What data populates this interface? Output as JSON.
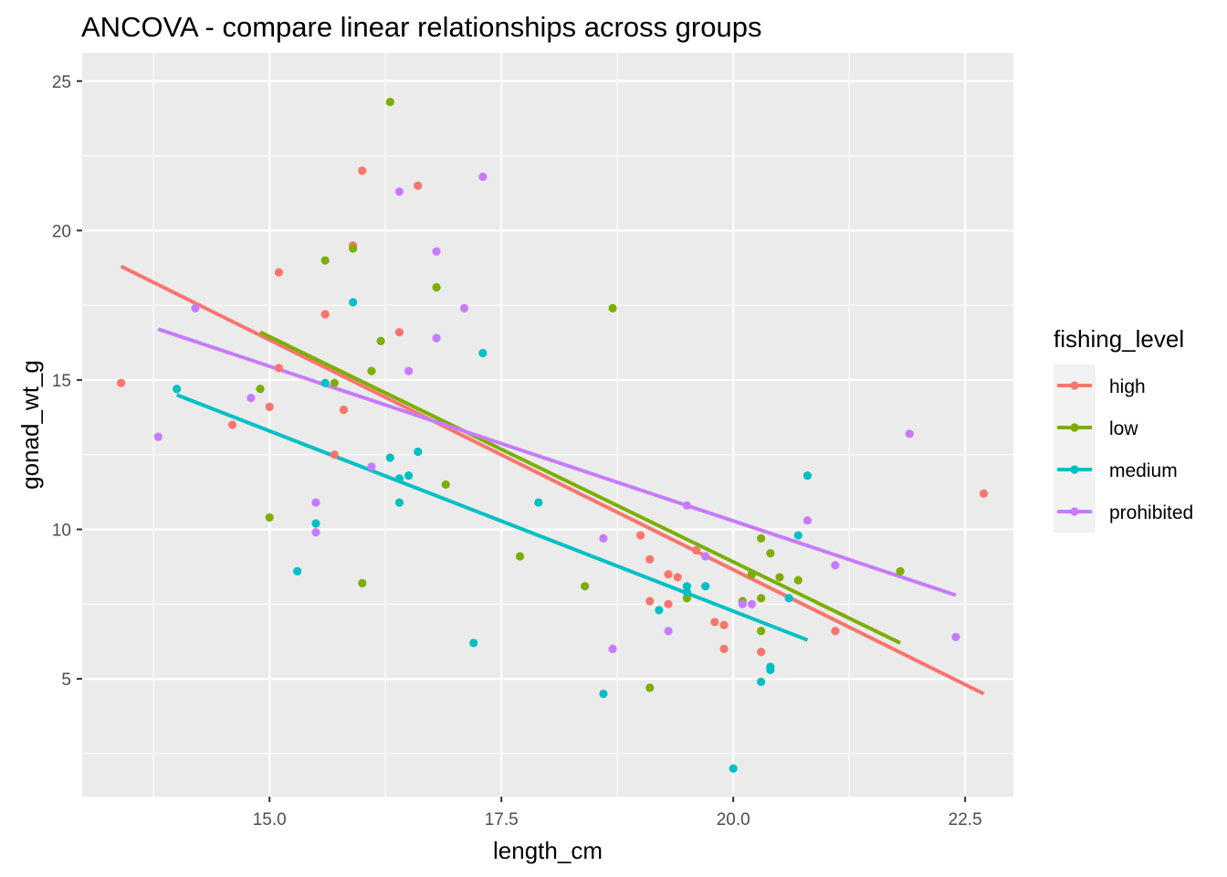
{
  "chart_data": {
    "type": "scatter",
    "title": "ANCOVA - compare linear relationships across groups",
    "xlabel": "length_cm",
    "ylabel": "gonad_wt_g",
    "xlim": [
      12.98,
      23.02
    ],
    "ylim": [
      1.06,
      25.94
    ],
    "x_ticks": [
      15.0,
      17.5,
      20.0,
      22.5
    ],
    "x_tick_labels": [
      "15.0",
      "17.5",
      "20.0",
      "22.5"
    ],
    "y_ticks": [
      5,
      10,
      15,
      20,
      25
    ],
    "y_tick_labels": [
      "5",
      "10",
      "15",
      "20",
      "25"
    ],
    "background": "#ebebeb",
    "grid": true,
    "legend": {
      "title": "fishing_level",
      "position": "right",
      "entries": [
        "high",
        "low",
        "medium",
        "prohibited"
      ]
    },
    "series": [
      {
        "name": "high",
        "color": "#f8766d",
        "points": [
          [
            13.4,
            14.9
          ],
          [
            14.6,
            13.5
          ],
          [
            15.0,
            14.1
          ],
          [
            15.1,
            18.6
          ],
          [
            15.1,
            15.4
          ],
          [
            15.6,
            17.2
          ],
          [
            15.7,
            12.5
          ],
          [
            15.8,
            14.0
          ],
          [
            15.9,
            19.5
          ],
          [
            16.0,
            22.0
          ],
          [
            16.4,
            16.6
          ],
          [
            16.6,
            21.5
          ],
          [
            19.0,
            9.8
          ],
          [
            19.1,
            9.0
          ],
          [
            19.1,
            7.6
          ],
          [
            19.3,
            8.5
          ],
          [
            19.3,
            7.5
          ],
          [
            19.4,
            8.4
          ],
          [
            19.6,
            9.3
          ],
          [
            19.8,
            6.9
          ],
          [
            19.9,
            6.8
          ],
          [
            19.9,
            6.0
          ],
          [
            20.3,
            5.9
          ],
          [
            21.1,
            6.6
          ],
          [
            22.7,
            11.2
          ]
        ],
        "fit": [
          [
            13.4,
            18.8
          ],
          [
            22.7,
            4.5
          ]
        ]
      },
      {
        "name": "low",
        "color": "#7cae00",
        "points": [
          [
            14.9,
            14.7
          ],
          [
            15.0,
            10.4
          ],
          [
            15.6,
            19.0
          ],
          [
            15.7,
            14.9
          ],
          [
            15.9,
            19.4
          ],
          [
            16.0,
            8.2
          ],
          [
            16.1,
            15.3
          ],
          [
            16.2,
            16.3
          ],
          [
            16.3,
            24.3
          ],
          [
            16.8,
            18.1
          ],
          [
            16.9,
            11.5
          ],
          [
            17.7,
            9.1
          ],
          [
            18.4,
            8.1
          ],
          [
            18.7,
            17.4
          ],
          [
            19.1,
            4.7
          ],
          [
            19.5,
            7.7
          ],
          [
            20.1,
            7.6
          ],
          [
            20.2,
            8.5
          ],
          [
            20.3,
            9.7
          ],
          [
            20.3,
            7.7
          ],
          [
            20.3,
            6.6
          ],
          [
            20.4,
            9.2
          ],
          [
            20.5,
            8.4
          ],
          [
            20.7,
            8.3
          ],
          [
            21.8,
            8.6
          ]
        ],
        "fit": [
          [
            14.9,
            16.6
          ],
          [
            21.8,
            6.2
          ]
        ]
      },
      {
        "name": "medium",
        "color": "#00bfc4",
        "points": [
          [
            14.0,
            14.7
          ],
          [
            15.3,
            8.6
          ],
          [
            15.5,
            10.2
          ],
          [
            15.6,
            14.9
          ],
          [
            15.9,
            17.6
          ],
          [
            16.3,
            12.4
          ],
          [
            16.4,
            11.7
          ],
          [
            16.4,
            10.9
          ],
          [
            16.5,
            11.8
          ],
          [
            16.6,
            12.6
          ],
          [
            17.2,
            6.2
          ],
          [
            17.3,
            15.9
          ],
          [
            17.9,
            10.9
          ],
          [
            18.6,
            4.5
          ],
          [
            19.2,
            7.3
          ],
          [
            19.5,
            8.1
          ],
          [
            19.5,
            7.9
          ],
          [
            19.7,
            8.1
          ],
          [
            20.0,
            2.0
          ],
          [
            20.3,
            4.9
          ],
          [
            20.4,
            5.4
          ],
          [
            20.4,
            5.3
          ],
          [
            20.6,
            7.7
          ],
          [
            20.7,
            9.8
          ],
          [
            20.8,
            11.8
          ]
        ],
        "fit": [
          [
            14.0,
            14.5
          ],
          [
            20.8,
            6.3
          ]
        ]
      },
      {
        "name": "prohibited",
        "color": "#c77cff",
        "points": [
          [
            13.8,
            13.1
          ],
          [
            14.2,
            17.4
          ],
          [
            14.8,
            14.4
          ],
          [
            15.5,
            10.9
          ],
          [
            15.5,
            9.9
          ],
          [
            16.1,
            12.1
          ],
          [
            16.4,
            21.3
          ],
          [
            16.5,
            15.3
          ],
          [
            16.8,
            19.3
          ],
          [
            16.8,
            16.4
          ],
          [
            17.1,
            17.4
          ],
          [
            17.3,
            21.8
          ],
          [
            18.6,
            9.7
          ],
          [
            18.7,
            6.0
          ],
          [
            19.3,
            6.6
          ],
          [
            19.5,
            10.8
          ],
          [
            19.7,
            9.1
          ],
          [
            20.1,
            7.5
          ],
          [
            20.2,
            7.5
          ],
          [
            20.8,
            10.3
          ],
          [
            21.1,
            8.8
          ],
          [
            21.9,
            13.2
          ],
          [
            22.4,
            6.4
          ]
        ],
        "fit": [
          [
            13.8,
            16.7
          ],
          [
            22.4,
            7.8
          ]
        ]
      }
    ]
  }
}
